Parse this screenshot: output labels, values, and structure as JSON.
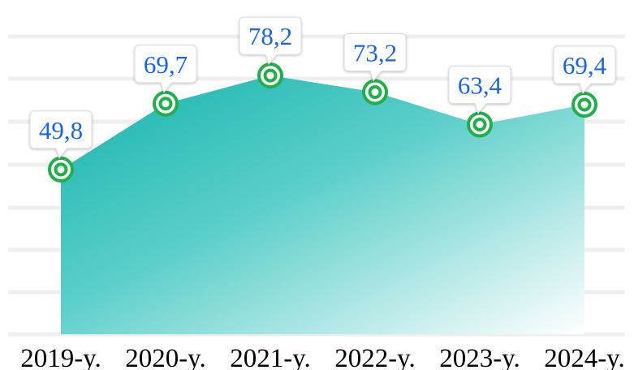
{
  "chart_data": {
    "type": "area",
    "categories": [
      "2019-y.",
      "2020-y.",
      "2021-y.",
      "2022-y.",
      "2023-y.",
      "2024-y."
    ],
    "values": [
      49.8,
      69.7,
      78.2,
      73.2,
      63.4,
      69.4
    ],
    "value_labels": [
      "49,8",
      "69,7",
      "78,2",
      "73,2",
      "63,4",
      "69,4"
    ],
    "color": "#14b3ad",
    "marker_color": "#1fb04a",
    "label_color": "#1a66e0",
    "ylim": [
      0,
      90
    ]
  }
}
